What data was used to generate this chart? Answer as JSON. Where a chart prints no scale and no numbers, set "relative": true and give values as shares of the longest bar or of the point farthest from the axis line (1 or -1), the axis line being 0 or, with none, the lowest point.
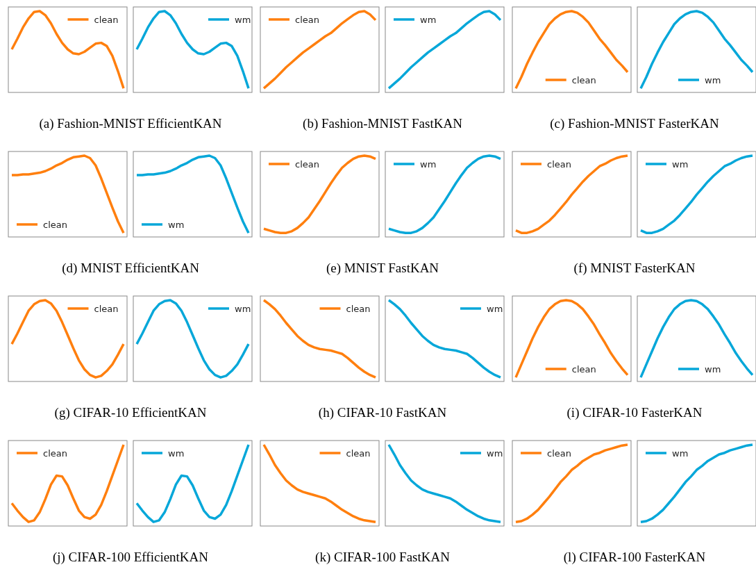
{
  "chart_data": [
    {
      "type": "line",
      "relative": true,
      "categories": [
        null,
        null,
        null,
        null,
        null,
        null,
        null,
        null,
        null,
        null,
        null,
        null,
        null,
        null,
        null,
        null,
        null,
        null,
        null,
        null,
        null
      ],
      "series": [
        {
          "name": "clean",
          "color": "#ff7f0e",
          "values": [
            0.53,
            0.66,
            0.8,
            0.91,
            0.99,
            1.0,
            0.95,
            0.85,
            0.72,
            0.61,
            0.53,
            0.48,
            0.47,
            0.5,
            0.55,
            0.6,
            0.61,
            0.57,
            0.45,
            0.26,
            0.05
          ]
        }
      ],
      "legend": "top right"
    },
    {
      "type": "line",
      "relative": true,
      "categories": [
        null,
        null,
        null,
        null,
        null,
        null,
        null,
        null,
        null,
        null,
        null,
        null,
        null,
        null,
        null,
        null,
        null,
        null,
        null,
        null,
        null
      ],
      "series": [
        {
          "name": "wm",
          "color": "#06a7d9",
          "values": [
            0.53,
            0.66,
            0.8,
            0.91,
            0.99,
            1.0,
            0.95,
            0.85,
            0.72,
            0.61,
            0.53,
            0.48,
            0.47,
            0.5,
            0.55,
            0.6,
            0.61,
            0.57,
            0.45,
            0.26,
            0.05
          ]
        }
      ],
      "legend": "top right"
    },
    {
      "type": "line",
      "relative": true,
      "categories": [
        null,
        null,
        null,
        null,
        null,
        null,
        null,
        null,
        null,
        null,
        null,
        null,
        null,
        null,
        null,
        null,
        null,
        null,
        null,
        null,
        null
      ],
      "series": [
        {
          "name": "clean",
          "color": "#ff7f0e",
          "values": [
            0.05,
            0.11,
            0.17,
            0.24,
            0.31,
            0.37,
            0.43,
            0.49,
            0.54,
            0.59,
            0.64,
            0.69,
            0.73,
            0.79,
            0.85,
            0.9,
            0.95,
            0.99,
            1.0,
            0.96,
            0.89
          ]
        }
      ],
      "legend": "top left"
    },
    {
      "type": "line",
      "relative": true,
      "categories": [
        null,
        null,
        null,
        null,
        null,
        null,
        null,
        null,
        null,
        null,
        null,
        null,
        null,
        null,
        null,
        null,
        null,
        null,
        null,
        null,
        null
      ],
      "series": [
        {
          "name": "wm",
          "color": "#06a7d9",
          "values": [
            0.05,
            0.11,
            0.17,
            0.24,
            0.31,
            0.37,
            0.43,
            0.49,
            0.54,
            0.59,
            0.64,
            0.69,
            0.73,
            0.79,
            0.85,
            0.9,
            0.95,
            0.99,
            1.0,
            0.96,
            0.89
          ]
        }
      ],
      "legend": "top left"
    },
    {
      "type": "line",
      "relative": true,
      "categories": [
        null,
        null,
        null,
        null,
        null,
        null,
        null,
        null,
        null,
        null,
        null,
        null,
        null,
        null,
        null,
        null,
        null,
        null,
        null,
        null,
        null
      ],
      "series": [
        {
          "name": "clean",
          "color": "#ff7f0e",
          "values": [
            0.05,
            0.19,
            0.35,
            0.49,
            0.62,
            0.73,
            0.84,
            0.91,
            0.96,
            0.99,
            1.0,
            0.98,
            0.93,
            0.86,
            0.76,
            0.66,
            0.58,
            0.49,
            0.4,
            0.33,
            0.25
          ]
        }
      ],
      "legend": "bottom"
    },
    {
      "type": "line",
      "relative": true,
      "categories": [
        null,
        null,
        null,
        null,
        null,
        null,
        null,
        null,
        null,
        null,
        null,
        null,
        null,
        null,
        null,
        null,
        null,
        null,
        null,
        null,
        null
      ],
      "series": [
        {
          "name": "wm",
          "color": "#06a7d9",
          "values": [
            0.05,
            0.19,
            0.35,
            0.49,
            0.62,
            0.73,
            0.84,
            0.91,
            0.96,
            0.99,
            1.0,
            0.98,
            0.93,
            0.86,
            0.76,
            0.66,
            0.58,
            0.49,
            0.4,
            0.33,
            0.25
          ]
        }
      ],
      "legend": "bottom"
    },
    {
      "type": "other",
      "title": "(a) Fashion-MNIST EfficientKAN"
    },
    {
      "type": "other",
      "title": "(b) Fashion-MNIST FastKAN"
    },
    {
      "type": "other",
      "title": "(c) Fashion-MNIST FasterKAN"
    },
    {
      "type": "line",
      "relative": true,
      "categories": [
        null,
        null,
        null,
        null,
        null,
        null,
        null,
        null,
        null,
        null,
        null,
        null,
        null,
        null,
        null,
        null,
        null,
        null,
        null,
        null,
        null
      ],
      "series": [
        {
          "name": "clean",
          "color": "#ff7f0e",
          "values": [
            0.76,
            0.76,
            0.77,
            0.77,
            0.78,
            0.79,
            0.81,
            0.84,
            0.88,
            0.91,
            0.95,
            0.98,
            0.99,
            1.0,
            0.97,
            0.88,
            0.72,
            0.54,
            0.36,
            0.19,
            0.05
          ]
        }
      ],
      "legend": "bottom left"
    },
    {
      "type": "line",
      "relative": true,
      "categories": [
        null,
        null,
        null,
        null,
        null,
        null,
        null,
        null,
        null,
        null,
        null,
        null,
        null,
        null,
        null,
        null,
        null,
        null,
        null,
        null,
        null
      ],
      "series": [
        {
          "name": "wm",
          "color": "#06a7d9",
          "values": [
            0.76,
            0.76,
            0.77,
            0.77,
            0.78,
            0.79,
            0.81,
            0.84,
            0.88,
            0.91,
            0.95,
            0.98,
            0.99,
            1.0,
            0.97,
            0.88,
            0.72,
            0.54,
            0.36,
            0.19,
            0.05
          ]
        }
      ],
      "legend": "bottom left"
    },
    {
      "type": "line",
      "relative": true,
      "categories": [
        null,
        null,
        null,
        null,
        null,
        null,
        null,
        null,
        null,
        null,
        null,
        null,
        null,
        null,
        null,
        null,
        null,
        null,
        null,
        null,
        null
      ],
      "series": [
        {
          "name": "clean",
          "color": "#ff7f0e",
          "values": [
            0.1,
            0.08,
            0.06,
            0.05,
            0.05,
            0.07,
            0.11,
            0.17,
            0.24,
            0.34,
            0.44,
            0.55,
            0.66,
            0.76,
            0.85,
            0.91,
            0.96,
            0.99,
            1.0,
            0.99,
            0.96
          ]
        }
      ],
      "legend": "top left"
    },
    {
      "type": "line",
      "relative": true,
      "categories": [
        null,
        null,
        null,
        null,
        null,
        null,
        null,
        null,
        null,
        null,
        null,
        null,
        null,
        null,
        null,
        null,
        null,
        null,
        null,
        null,
        null
      ],
      "series": [
        {
          "name": "wm",
          "color": "#06a7d9",
          "values": [
            0.1,
            0.08,
            0.06,
            0.05,
            0.05,
            0.07,
            0.11,
            0.17,
            0.24,
            0.34,
            0.44,
            0.55,
            0.66,
            0.76,
            0.85,
            0.91,
            0.96,
            0.99,
            1.0,
            0.99,
            0.96
          ]
        }
      ],
      "legend": "top left"
    },
    {
      "type": "line",
      "relative": true,
      "categories": [
        null,
        null,
        null,
        null,
        null,
        null,
        null,
        null,
        null,
        null,
        null,
        null,
        null,
        null,
        null,
        null,
        null,
        null,
        null,
        null,
        null
      ],
      "series": [
        {
          "name": "clean",
          "color": "#ff7f0e",
          "values": [
            0.08,
            0.05,
            0.05,
            0.07,
            0.1,
            0.15,
            0.2,
            0.27,
            0.35,
            0.43,
            0.52,
            0.6,
            0.68,
            0.75,
            0.81,
            0.87,
            0.9,
            0.94,
            0.97,
            0.99,
            1.0
          ]
        }
      ],
      "legend": "top left"
    },
    {
      "type": "line",
      "relative": true,
      "categories": [
        null,
        null,
        null,
        null,
        null,
        null,
        null,
        null,
        null,
        null,
        null,
        null,
        null,
        null,
        null,
        null,
        null,
        null,
        null,
        null,
        null
      ],
      "series": [
        {
          "name": "wm",
          "color": "#06a7d9",
          "values": [
            0.08,
            0.05,
            0.05,
            0.07,
            0.1,
            0.15,
            0.2,
            0.27,
            0.35,
            0.43,
            0.52,
            0.6,
            0.68,
            0.75,
            0.81,
            0.87,
            0.9,
            0.94,
            0.97,
            0.99,
            1.0
          ]
        }
      ],
      "legend": "top left"
    },
    {
      "type": "other",
      "title": "(d) MNIST EfficientKAN"
    },
    {
      "type": "other",
      "title": "(e) MNIST FastKAN"
    },
    {
      "type": "other",
      "title": "(f) MNIST FasterKAN"
    },
    {
      "type": "line",
      "relative": true,
      "categories": [
        null,
        null,
        null,
        null,
        null,
        null,
        null,
        null,
        null,
        null,
        null,
        null,
        null,
        null,
        null,
        null,
        null,
        null,
        null,
        null,
        null
      ],
      "series": [
        {
          "name": "clean",
          "color": "#ff7f0e",
          "values": [
            0.46,
            0.59,
            0.73,
            0.87,
            0.95,
            0.99,
            1.0,
            0.96,
            0.87,
            0.73,
            0.57,
            0.41,
            0.26,
            0.15,
            0.08,
            0.05,
            0.07,
            0.13,
            0.21,
            0.33,
            0.46
          ]
        }
      ],
      "legend": "top right"
    },
    {
      "type": "line",
      "relative": true,
      "categories": [
        null,
        null,
        null,
        null,
        null,
        null,
        null,
        null,
        null,
        null,
        null,
        null,
        null,
        null,
        null,
        null,
        null,
        null,
        null,
        null,
        null
      ],
      "series": [
        {
          "name": "wm",
          "color": "#06a7d9",
          "values": [
            0.46,
            0.59,
            0.73,
            0.87,
            0.95,
            0.99,
            1.0,
            0.96,
            0.87,
            0.73,
            0.57,
            0.41,
            0.26,
            0.15,
            0.08,
            0.05,
            0.07,
            0.13,
            0.21,
            0.33,
            0.46
          ]
        }
      ],
      "legend": "top right"
    },
    {
      "type": "line",
      "relative": true,
      "categories": [
        null,
        null,
        null,
        null,
        null,
        null,
        null,
        null,
        null,
        null,
        null,
        null,
        null,
        null,
        null,
        null,
        null,
        null,
        null,
        null,
        null
      ],
      "series": [
        {
          "name": "clean",
          "color": "#ff7f0e",
          "values": [
            1.0,
            0.95,
            0.89,
            0.81,
            0.72,
            0.64,
            0.56,
            0.5,
            0.45,
            0.42,
            0.4,
            0.39,
            0.38,
            0.36,
            0.34,
            0.29,
            0.23,
            0.17,
            0.12,
            0.08,
            0.05
          ]
        }
      ],
      "legend": "top right"
    },
    {
      "type": "line",
      "relative": true,
      "categories": [
        null,
        null,
        null,
        null,
        null,
        null,
        null,
        null,
        null,
        null,
        null,
        null,
        null,
        null,
        null,
        null,
        null,
        null,
        null,
        null,
        null
      ],
      "series": [
        {
          "name": "wm",
          "color": "#06a7d9",
          "values": [
            1.0,
            0.95,
            0.89,
            0.81,
            0.72,
            0.64,
            0.56,
            0.5,
            0.45,
            0.42,
            0.4,
            0.39,
            0.38,
            0.36,
            0.34,
            0.29,
            0.23,
            0.17,
            0.12,
            0.08,
            0.05
          ]
        }
      ],
      "legend": "top right"
    },
    {
      "type": "line",
      "relative": true,
      "categories": [
        null,
        null,
        null,
        null,
        null,
        null,
        null,
        null,
        null,
        null,
        null,
        null,
        null,
        null,
        null,
        null,
        null,
        null,
        null,
        null,
        null
      ],
      "series": [
        {
          "name": "clean",
          "color": "#ff7f0e",
          "values": [
            0.05,
            0.21,
            0.37,
            0.53,
            0.67,
            0.79,
            0.89,
            0.95,
            0.99,
            1.0,
            0.99,
            0.95,
            0.89,
            0.8,
            0.7,
            0.58,
            0.47,
            0.35,
            0.25,
            0.16,
            0.08
          ]
        }
      ],
      "legend": "bottom"
    },
    {
      "type": "line",
      "relative": true,
      "categories": [
        null,
        null,
        null,
        null,
        null,
        null,
        null,
        null,
        null,
        null,
        null,
        null,
        null,
        null,
        null,
        null,
        null,
        null,
        null,
        null,
        null
      ],
      "series": [
        {
          "name": "wm",
          "color": "#06a7d9",
          "values": [
            0.05,
            0.21,
            0.37,
            0.53,
            0.67,
            0.79,
            0.89,
            0.95,
            0.99,
            1.0,
            0.99,
            0.95,
            0.89,
            0.8,
            0.7,
            0.58,
            0.47,
            0.35,
            0.25,
            0.16,
            0.08
          ]
        }
      ],
      "legend": "bottom"
    },
    {
      "type": "other",
      "title": "(g) CIFAR-10 EfficientKAN"
    },
    {
      "type": "other",
      "title": "(h) CIFAR-10 FastKAN"
    },
    {
      "type": "other",
      "title": "(i) CIFAR-10 FasterKAN"
    },
    {
      "type": "line",
      "relative": true,
      "categories": [
        null,
        null,
        null,
        null,
        null,
        null,
        null,
        null,
        null,
        null,
        null,
        null,
        null,
        null,
        null,
        null,
        null,
        null,
        null,
        null,
        null
      ],
      "series": [
        {
          "name": "clean",
          "color": "#ff7f0e",
          "values": [
            0.28,
            0.19,
            0.11,
            0.05,
            0.07,
            0.17,
            0.33,
            0.51,
            0.62,
            0.61,
            0.5,
            0.34,
            0.19,
            0.11,
            0.09,
            0.14,
            0.26,
            0.43,
            0.62,
            0.81,
            1.0
          ]
        }
      ],
      "legend": "top left"
    },
    {
      "type": "line",
      "relative": true,
      "categories": [
        null,
        null,
        null,
        null,
        null,
        null,
        null,
        null,
        null,
        null,
        null,
        null,
        null,
        null,
        null,
        null,
        null,
        null,
        null,
        null,
        null
      ],
      "series": [
        {
          "name": "wm",
          "color": "#06a7d9",
          "values": [
            0.28,
            0.19,
            0.11,
            0.05,
            0.07,
            0.17,
            0.33,
            0.51,
            0.62,
            0.61,
            0.5,
            0.34,
            0.19,
            0.11,
            0.09,
            0.14,
            0.26,
            0.43,
            0.62,
            0.81,
            1.0
          ]
        }
      ],
      "legend": "top left"
    },
    {
      "type": "line",
      "relative": true,
      "categories": [
        null,
        null,
        null,
        null,
        null,
        null,
        null,
        null,
        null,
        null,
        null,
        null,
        null,
        null,
        null,
        null,
        null,
        null,
        null,
        null,
        null
      ],
      "series": [
        {
          "name": "clean",
          "color": "#ff7f0e",
          "values": [
            1.0,
            0.88,
            0.75,
            0.65,
            0.56,
            0.5,
            0.45,
            0.42,
            0.4,
            0.38,
            0.36,
            0.34,
            0.3,
            0.25,
            0.2,
            0.16,
            0.12,
            0.09,
            0.07,
            0.06,
            0.05
          ]
        }
      ],
      "legend": "top right"
    },
    {
      "type": "line",
      "relative": true,
      "categories": [
        null,
        null,
        null,
        null,
        null,
        null,
        null,
        null,
        null,
        null,
        null,
        null,
        null,
        null,
        null,
        null,
        null,
        null,
        null,
        null,
        null
      ],
      "series": [
        {
          "name": "wm",
          "color": "#06a7d9",
          "values": [
            1.0,
            0.88,
            0.75,
            0.65,
            0.56,
            0.5,
            0.45,
            0.42,
            0.4,
            0.38,
            0.36,
            0.34,
            0.3,
            0.25,
            0.2,
            0.16,
            0.12,
            0.09,
            0.07,
            0.06,
            0.05
          ]
        }
      ],
      "legend": "top right"
    },
    {
      "type": "line",
      "relative": true,
      "categories": [
        null,
        null,
        null,
        null,
        null,
        null,
        null,
        null,
        null,
        null,
        null,
        null,
        null,
        null,
        null,
        null,
        null,
        null,
        null,
        null,
        null
      ],
      "series": [
        {
          "name": "clean",
          "color": "#ff7f0e",
          "values": [
            0.05,
            0.06,
            0.09,
            0.14,
            0.2,
            0.28,
            0.36,
            0.45,
            0.54,
            0.61,
            0.69,
            0.74,
            0.8,
            0.84,
            0.88,
            0.9,
            0.93,
            0.95,
            0.97,
            0.99,
            1.0
          ]
        }
      ],
      "legend": "top left"
    },
    {
      "type": "line",
      "relative": true,
      "categories": [
        null,
        null,
        null,
        null,
        null,
        null,
        null,
        null,
        null,
        null,
        null,
        null,
        null,
        null,
        null,
        null,
        null,
        null,
        null,
        null,
        null
      ],
      "series": [
        {
          "name": "wm",
          "color": "#06a7d9",
          "values": [
            0.05,
            0.06,
            0.09,
            0.14,
            0.2,
            0.28,
            0.36,
            0.45,
            0.54,
            0.61,
            0.69,
            0.74,
            0.8,
            0.84,
            0.88,
            0.9,
            0.93,
            0.95,
            0.97,
            0.99,
            1.0
          ]
        }
      ],
      "legend": "top left"
    },
    {
      "type": "other",
      "title": "(j) CIFAR-100 EfficientKAN"
    },
    {
      "type": "other",
      "title": "(k) CIFAR-100 FastKAN"
    },
    {
      "type": "other",
      "title": "(l) CIFAR-100 FasterKAN"
    }
  ]
}
